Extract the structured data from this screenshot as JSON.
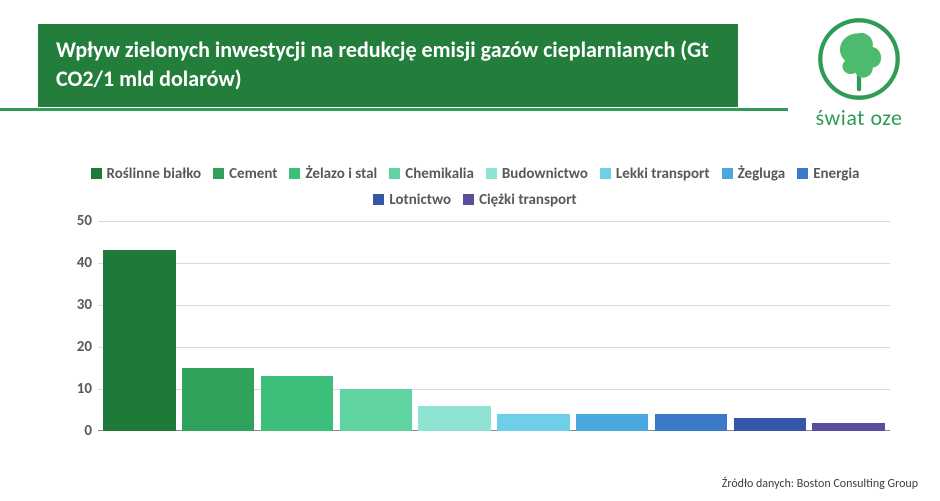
{
  "header": {
    "title": "Wpływ zielonych inwestycji na redukcję emisji gazów cieplarnianych (Gt CO2/1 mld dolarów)",
    "bg_color": "#237d3b",
    "underline_color": "#2e9c56"
  },
  "logo": {
    "text": "świat oze",
    "stroke": "#2e9c56",
    "leaf_fill": "#4dbb6d"
  },
  "chart": {
    "type": "bar",
    "ylim": [
      0,
      50
    ],
    "ytick_step": 10,
    "yticks": [
      0,
      10,
      20,
      30,
      40,
      50
    ],
    "grid_color": "#d9d9d9",
    "label_color": "#595959",
    "label_fontsize": 15,
    "series": [
      {
        "label": "Roślinne białko",
        "value": 43,
        "color": "#1f7a3a"
      },
      {
        "label": "Cement",
        "value": 15,
        "color": "#2fa35b"
      },
      {
        "label": "Żelazo i stal",
        "value": 13,
        "color": "#3bbf7a"
      },
      {
        "label": "Chemikalia",
        "value": 10,
        "color": "#5fd4a0"
      },
      {
        "label": "Budownictwo",
        "value": 6,
        "color": "#8ee3d3"
      },
      {
        "label": "Lekki transport",
        "value": 4,
        "color": "#6fcfe9"
      },
      {
        "label": "Żegluga",
        "value": 4,
        "color": "#4aa8e0"
      },
      {
        "label": "Energia",
        "value": 4,
        "color": "#3a7ac8"
      },
      {
        "label": "Lotnictwo",
        "value": 3,
        "color": "#3656a8"
      },
      {
        "label": "Ciężki transport",
        "value": 2,
        "color": "#5a4e9c"
      }
    ]
  },
  "source": {
    "text": "Źródło danych: Boston Consulting Group"
  }
}
